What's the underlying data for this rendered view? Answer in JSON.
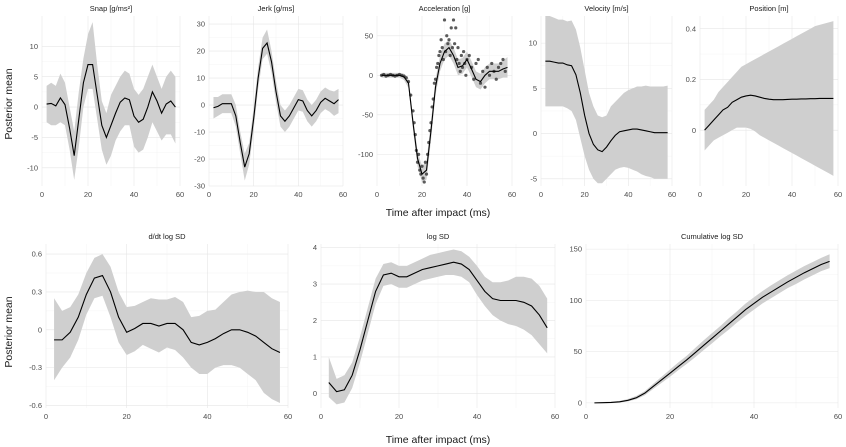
{
  "figure": {
    "ylabel_top": "Posterior mean",
    "xlabel_top": "Time after impact (ms)",
    "ylabel_bottom": "Posterior mean",
    "xlabel_bottom": "Time after impact (ms)"
  },
  "chart_data": [
    {
      "type": "line",
      "title": "Snap [g/ms²]",
      "xlim": [
        0,
        60
      ],
      "ylim": [
        -13,
        15
      ],
      "xticks": [
        0,
        20,
        40,
        60
      ],
      "yticks": [
        -10,
        -5,
        0,
        5,
        10
      ],
      "x": [
        2,
        4,
        6,
        8,
        10,
        12,
        14,
        16,
        18,
        20,
        22,
        24,
        26,
        28,
        30,
        32,
        34,
        36,
        38,
        40,
        42,
        44,
        46,
        48,
        50,
        52,
        54,
        56,
        58
      ],
      "mean": [
        0.5,
        0.6,
        0.2,
        1.5,
        0.4,
        -3.5,
        -8,
        -2,
        4,
        7,
        7,
        2,
        -3,
        -5,
        -3,
        -1,
        0.8,
        1.5,
        1.2,
        -1.5,
        -2.5,
        -2,
        0,
        2.5,
        1,
        -1,
        0.5,
        1,
        0
      ],
      "lower": [
        -2.5,
        -3,
        -3,
        -2.5,
        -3,
        -7,
        -12,
        -6.5,
        0,
        3,
        3,
        -2,
        -7,
        -9.5,
        -8,
        -5.5,
        -4,
        -3,
        -3,
        -6.5,
        -7.5,
        -7,
        -5,
        -2.5,
        -4,
        -5.5,
        -4.5,
        -4.5,
        -6
      ],
      "upper": [
        3.5,
        4,
        3.5,
        5.5,
        4,
        0,
        -4,
        2.5,
        8,
        12,
        14,
        7,
        1,
        -1,
        2,
        3.5,
        5,
        6,
        5.5,
        3,
        2,
        3,
        5,
        7,
        5,
        3,
        5,
        6,
        5
      ]
    },
    {
      "type": "line",
      "title": "Jerk [g/ms]",
      "xlim": [
        0,
        60
      ],
      "ylim": [
        -30,
        33
      ],
      "xticks": [
        0,
        20,
        40,
        60
      ],
      "yticks": [
        -30,
        -20,
        -10,
        0,
        10,
        20,
        30
      ],
      "x": [
        2,
        4,
        6,
        8,
        10,
        12,
        14,
        16,
        18,
        20,
        22,
        24,
        26,
        28,
        30,
        32,
        34,
        36,
        38,
        40,
        42,
        44,
        46,
        48,
        50,
        52,
        54,
        56,
        58
      ],
      "mean": [
        -1,
        -0.5,
        0.5,
        0.5,
        0.5,
        -4,
        -14,
        -23,
        -18,
        -5,
        10,
        21,
        23,
        16,
        5,
        -4,
        -6,
        -4,
        -1,
        2,
        1.5,
        -2,
        -4,
        -2,
        1,
        2.5,
        1.5,
        0.5,
        2
      ],
      "lower": [
        -5,
        -4,
        -3,
        -3,
        -3,
        -8,
        -18,
        -28,
        -22,
        -9,
        6,
        17,
        19,
        12,
        1,
        -8,
        -10,
        -8,
        -5,
        -2,
        -2.5,
        -6,
        -8,
        -6,
        -3,
        -1.5,
        -2.5,
        -4,
        -3
      ],
      "upper": [
        3,
        3,
        4,
        4,
        4,
        0,
        -10,
        -18,
        -14,
        -1,
        14,
        25,
        28,
        20,
        9,
        0,
        -2,
        0,
        3,
        6,
        5.5,
        2,
        0,
        2,
        5,
        6.5,
        5.5,
        5,
        6
      ]
    },
    {
      "type": "scatter",
      "title": "Acceleration [g]",
      "xlim": [
        0,
        60
      ],
      "ylim": [
        -140,
        75
      ],
      "xticks": [
        0,
        20,
        40,
        60
      ],
      "yticks": [
        -100,
        -50,
        0,
        50
      ],
      "x": [
        2,
        4,
        6,
        8,
        10,
        12,
        14,
        16,
        18,
        20,
        22,
        24,
        26,
        28,
        30,
        32,
        34,
        36,
        38,
        40,
        42,
        44,
        46,
        48,
        50,
        52,
        54,
        56,
        58
      ],
      "mean": [
        0,
        0,
        0,
        0,
        0,
        -2,
        -10,
        -60,
        -105,
        -125,
        -120,
        -70,
        -15,
        15,
        30,
        35,
        25,
        10,
        12,
        20,
        8,
        -5,
        -8,
        0,
        5,
        5,
        5,
        8,
        10
      ],
      "lower": [
        -3,
        -3,
        -3,
        -3,
        -3,
        -6,
        -16,
        -68,
        -115,
        -135,
        -132,
        -82,
        -25,
        5,
        20,
        25,
        15,
        0,
        2,
        10,
        -2,
        -15,
        -18,
        -10,
        -5,
        -5,
        -5,
        -3,
        -3
      ],
      "upper": [
        3,
        3,
        3,
        3,
        3,
        2,
        -4,
        -52,
        -95,
        -115,
        -108,
        -58,
        -5,
        25,
        40,
        45,
        35,
        20,
        22,
        30,
        18,
        5,
        2,
        10,
        15,
        15,
        15,
        19,
        23
      ],
      "points": {
        "x": [
          2,
          3,
          4,
          5,
          6,
          7,
          8,
          9,
          10,
          11,
          12,
          13,
          14,
          15,
          16,
          16.5,
          17,
          17.5,
          18,
          18.5,
          19,
          19.5,
          20,
          20.5,
          21,
          21.5,
          22,
          22.5,
          23,
          23.5,
          24,
          24.5,
          25,
          25.5,
          26,
          26.5,
          27,
          27.5,
          28,
          28.5,
          29,
          29.5,
          30,
          30.5,
          31,
          31.5,
          32,
          32.5,
          33,
          33.5,
          34,
          34.5,
          35,
          35.5,
          36,
          36.5,
          37,
          37.5,
          38,
          38.5,
          39,
          39.5,
          40,
          41,
          42,
          43,
          44,
          45,
          46,
          47,
          48,
          49,
          50,
          51,
          52,
          53,
          54,
          55,
          56,
          57
        ],
        "y": [
          0,
          1,
          -1,
          0,
          1,
          0,
          -1,
          0,
          1,
          0,
          -1,
          -3,
          -8,
          -25,
          -45,
          -60,
          -75,
          -95,
          -110,
          -100,
          -120,
          -125,
          -115,
          -130,
          -135,
          -110,
          -125,
          -100,
          -85,
          -70,
          -60,
          -40,
          -30,
          -10,
          -5,
          10,
          15,
          25,
          30,
          45,
          35,
          20,
          70,
          30,
          50,
          40,
          45,
          25,
          60,
          35,
          70,
          40,
          60,
          20,
          35,
          15,
          5,
          25,
          10,
          30,
          15,
          0,
          20,
          25,
          10,
          -5,
          15,
          20,
          -10,
          5,
          -15,
          10,
          0,
          15,
          5,
          -5,
          10,
          15,
          20,
          5
        ]
      }
    },
    {
      "type": "line",
      "title": "Velocity [m/s]",
      "xlim": [
        0,
        60
      ],
      "ylim": [
        -5.8,
        13
      ],
      "xticks": [
        0,
        20,
        40,
        60
      ],
      "yticks": [
        -5,
        0,
        5,
        10
      ],
      "x": [
        2,
        4,
        6,
        8,
        10,
        12,
        14,
        16,
        18,
        20,
        22,
        24,
        26,
        28,
        30,
        32,
        34,
        36,
        38,
        40,
        42,
        44,
        46,
        48,
        50,
        52,
        54,
        56,
        58
      ],
      "mean": [
        8,
        8,
        7.9,
        7.8,
        7.8,
        7.6,
        7.5,
        6.5,
        4.5,
        2,
        0,
        -1.2,
        -1.8,
        -2,
        -1.5,
        -0.8,
        -0.2,
        0.2,
        0.3,
        0.4,
        0.5,
        0.5,
        0.4,
        0.3,
        0.2,
        0.1,
        0.1,
        0.1,
        0.1
      ],
      "lower": [
        3,
        3,
        3,
        3,
        3,
        2.8,
        2.5,
        1.5,
        -0.5,
        -2.5,
        -4,
        -5,
        -5.5,
        -5.5,
        -5,
        -4.5,
        -4,
        -3.8,
        -3.7,
        -3.8,
        -4,
        -4.2,
        -4.5,
        -4.7,
        -4.8,
        -5,
        -5,
        -5,
        -5
      ],
      "upper": [
        13,
        13,
        12.8,
        12.6,
        12.6,
        12.4,
        12.5,
        11.5,
        9.5,
        7,
        4.5,
        3,
        2,
        1.8,
        2,
        3,
        3.5,
        4,
        4.5,
        4.8,
        5,
        5.2,
        5.2,
        5.3,
        5.2,
        5.2,
        5.2,
        5.2,
        5.3
      ]
    },
    {
      "type": "line",
      "title": "Position [m]",
      "xlim": [
        0,
        60
      ],
      "ylim": [
        -0.22,
        0.45
      ],
      "xticks": [
        0,
        20,
        40,
        60
      ],
      "yticks": [
        0.0,
        0.2,
        0.4
      ],
      "x": [
        2,
        4,
        6,
        8,
        10,
        12,
        14,
        16,
        18,
        20,
        22,
        24,
        26,
        28,
        30,
        32,
        34,
        36,
        38,
        40,
        42,
        44,
        46,
        48,
        50,
        52,
        54,
        56,
        58
      ],
      "mean": [
        0.0,
        0.02,
        0.04,
        0.06,
        0.08,
        0.09,
        0.11,
        0.12,
        0.13,
        0.135,
        0.138,
        0.135,
        0.13,
        0.125,
        0.122,
        0.12,
        0.12,
        0.12,
        0.121,
        0.122,
        0.122,
        0.123,
        0.123,
        0.124,
        0.124,
        0.125,
        0.125,
        0.125,
        0.125
      ],
      "lower": [
        -0.08,
        -0.06,
        -0.04,
        -0.03,
        -0.02,
        -0.01,
        0.0,
        0.01,
        0.01,
        0.01,
        0.005,
        -0.005,
        -0.02,
        -0.03,
        -0.04,
        -0.05,
        -0.06,
        -0.07,
        -0.08,
        -0.09,
        -0.1,
        -0.11,
        -0.12,
        -0.13,
        -0.14,
        -0.15,
        -0.16,
        -0.17,
        -0.18
      ],
      "upper": [
        0.08,
        0.1,
        0.12,
        0.15,
        0.17,
        0.19,
        0.21,
        0.23,
        0.25,
        0.26,
        0.27,
        0.28,
        0.29,
        0.3,
        0.31,
        0.32,
        0.33,
        0.34,
        0.35,
        0.36,
        0.37,
        0.38,
        0.39,
        0.4,
        0.41,
        0.415,
        0.42,
        0.425,
        0.43
      ]
    },
    {
      "type": "line",
      "title": "d/dt log SD",
      "xlim": [
        0,
        60
      ],
      "ylim": [
        -0.62,
        0.68
      ],
      "xticks": [
        0,
        20,
        40,
        60
      ],
      "yticks": [
        -0.6,
        -0.3,
        0.0,
        0.3,
        0.6
      ],
      "x": [
        2,
        4,
        6,
        8,
        10,
        12,
        14,
        16,
        18,
        20,
        22,
        24,
        26,
        28,
        30,
        32,
        34,
        36,
        38,
        40,
        42,
        44,
        46,
        48,
        50,
        52,
        54,
        56,
        58
      ],
      "mean": [
        -0.08,
        -0.08,
        -0.02,
        0.1,
        0.28,
        0.41,
        0.43,
        0.3,
        0.1,
        -0.02,
        0.01,
        0.05,
        0.05,
        0.03,
        0.05,
        0.05,
        0.0,
        -0.1,
        -0.12,
        -0.1,
        -0.07,
        -0.03,
        0.0,
        0.0,
        -0.02,
        -0.05,
        -0.1,
        -0.15,
        -0.18
      ],
      "lower": [
        -0.4,
        -0.3,
        -0.22,
        -0.08,
        0.12,
        0.25,
        0.27,
        0.1,
        -0.1,
        -0.2,
        -0.17,
        -0.12,
        -0.15,
        -0.18,
        -0.14,
        -0.16,
        -0.22,
        -0.3,
        -0.35,
        -0.35,
        -0.3,
        -0.28,
        -0.28,
        -0.3,
        -0.35,
        -0.4,
        -0.5,
        -0.55,
        -0.58
      ],
      "upper": [
        0.25,
        0.15,
        0.18,
        0.28,
        0.45,
        0.57,
        0.6,
        0.5,
        0.3,
        0.18,
        0.19,
        0.22,
        0.25,
        0.24,
        0.24,
        0.26,
        0.22,
        0.1,
        0.11,
        0.15,
        0.16,
        0.22,
        0.28,
        0.3,
        0.31,
        0.3,
        0.3,
        0.25,
        0.22
      ]
    },
    {
      "type": "line",
      "title": "log SD",
      "xlim": [
        0,
        60
      ],
      "ylim": [
        -0.4,
        4.1
      ],
      "xticks": [
        0,
        20,
        40,
        60
      ],
      "yticks": [
        0,
        1,
        2,
        3,
        4
      ],
      "x": [
        2,
        4,
        6,
        8,
        10,
        12,
        14,
        16,
        18,
        20,
        22,
        24,
        26,
        28,
        30,
        32,
        34,
        36,
        38,
        40,
        42,
        44,
        46,
        48,
        50,
        52,
        54,
        56,
        58
      ],
      "mean": [
        0.3,
        0.05,
        0.1,
        0.5,
        1.2,
        2.0,
        2.8,
        3.25,
        3.3,
        3.2,
        3.2,
        3.3,
        3.4,
        3.45,
        3.5,
        3.55,
        3.6,
        3.55,
        3.4,
        3.1,
        2.8,
        2.6,
        2.55,
        2.55,
        2.55,
        2.5,
        2.4,
        2.15,
        1.8
      ],
      "lower": [
        -0.1,
        -0.3,
        -0.25,
        0.15,
        0.85,
        1.65,
        2.45,
        2.95,
        3.0,
        2.9,
        2.9,
        3.0,
        3.1,
        3.15,
        3.2,
        3.25,
        3.25,
        3.2,
        3.05,
        2.7,
        2.4,
        2.15,
        2.0,
        1.9,
        1.85,
        1.75,
        1.6,
        1.35,
        1.1
      ],
      "upper": [
        1.0,
        0.4,
        0.5,
        0.85,
        1.55,
        2.35,
        3.15,
        3.55,
        3.6,
        3.5,
        3.5,
        3.6,
        3.7,
        3.8,
        3.85,
        3.9,
        3.95,
        3.9,
        3.75,
        3.5,
        3.2,
        3.05,
        3.05,
        3.1,
        3.2,
        3.2,
        3.15,
        2.95,
        2.6
      ]
    },
    {
      "type": "line",
      "title": "Cumulative log SD",
      "xlim": [
        0,
        60
      ],
      "ylim": [
        -5,
        155
      ],
      "xticks": [
        0,
        20,
        40,
        60
      ],
      "yticks": [
        0,
        50,
        100,
        150
      ],
      "x": [
        2,
        4,
        6,
        8,
        10,
        12,
        14,
        16,
        18,
        20,
        22,
        24,
        26,
        28,
        30,
        32,
        34,
        36,
        38,
        40,
        42,
        44,
        46,
        48,
        50,
        52,
        54,
        56,
        58
      ],
      "mean": [
        0,
        0.2,
        0.4,
        1,
        2.5,
        5,
        9.5,
        16,
        22.5,
        29,
        35.5,
        42,
        49,
        56,
        63,
        70,
        77,
        84,
        91,
        97,
        103,
        108,
        113,
        118,
        122.5,
        127,
        131,
        135,
        138
      ],
      "lower": [
        -0.5,
        -0.3,
        -0.2,
        0.3,
        1.5,
        3.5,
        7.5,
        13.5,
        19.5,
        25.5,
        32,
        38,
        44.5,
        51.5,
        58,
        65,
        71.5,
        78.5,
        85,
        91,
        97,
        102,
        107,
        112,
        116,
        120.5,
        124.5,
        128.5,
        131.5
      ],
      "upper": [
        0.5,
        0.8,
        1.2,
        2,
        3.8,
        6.8,
        11.5,
        18.5,
        25.5,
        32.5,
        39.5,
        46,
        53.5,
        61,
        68,
        75,
        82.5,
        89.5,
        97,
        103,
        109,
        114.5,
        119.5,
        124.5,
        129,
        133.5,
        137.5,
        141.5,
        145
      ]
    }
  ]
}
